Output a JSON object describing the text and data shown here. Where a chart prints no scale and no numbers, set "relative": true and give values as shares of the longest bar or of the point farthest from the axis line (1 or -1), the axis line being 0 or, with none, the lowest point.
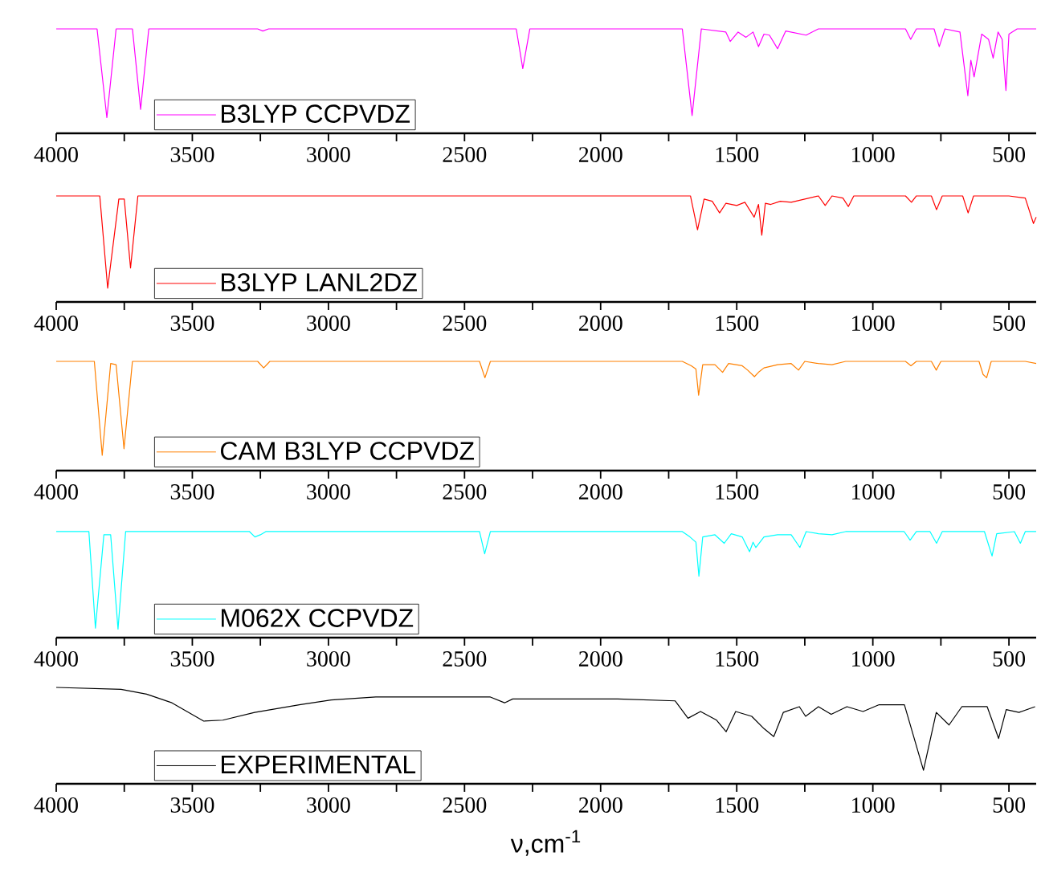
{
  "chart_data": [
    {
      "type": "line",
      "relative": true,
      "xlim": [
        4000,
        400
      ],
      "tick_labels": "x",
      "legend": "bottom left",
      "xticks": [
        4000,
        {
          "value": 3750,
          "label": null
        },
        3500,
        {
          "value": 3250,
          "label": null
        },
        3000,
        {
          "value": 2750,
          "label": null
        },
        2500,
        {
          "value": 2250,
          "label": null
        },
        2000,
        {
          "value": 1750,
          "label": null
        },
        1500,
        {
          "value": 1250,
          "label": null
        },
        1000,
        {
          "value": 750,
          "label": null
        },
        500
      ],
      "series": [
        {
          "name": "B3LYP CCPVDZ",
          "color": "#ff00ff",
          "x": [
            4000,
            3850,
            3814,
            3780,
            3720,
            3690,
            3660,
            3260,
            3241,
            3220,
            2310,
            2286,
            2260,
            1700,
            1664,
            1630,
            1540,
            1524,
            1495,
            1466,
            1440,
            1420,
            1400,
            1380,
            1350,
            1320,
            1245,
            1200,
            880,
            861,
            840,
            775,
            756,
            735,
            680,
            651,
            640,
            628,
            600,
            575,
            558,
            540,
            525,
            511,
            500,
            470,
            400
          ],
          "values": [
            1,
            1,
            0.15,
            1,
            1,
            0.23,
            1,
            1,
            0.98,
            1,
            1,
            0.62,
            1,
            1,
            0.17,
            1,
            0.97,
            0.88,
            0.97,
            0.92,
            0.97,
            0.83,
            0.95,
            0.94,
            0.81,
            0.98,
            0.94,
            1,
            1,
            0.9,
            1,
            1,
            0.83,
            1,
            0.97,
            0.36,
            0.7,
            0.54,
            0.95,
            0.9,
            0.72,
            0.97,
            0.9,
            0.41,
            0.95,
            1,
            1
          ]
        }
      ]
    },
    {
      "type": "line",
      "relative": true,
      "xlim": [
        4000,
        400
      ],
      "tick_labels": "x",
      "legend": "bottom left",
      "xticks": [
        4000,
        {
          "value": 3750,
          "label": null
        },
        3500,
        {
          "value": 3250,
          "label": null
        },
        3000,
        {
          "value": 2750,
          "label": null
        },
        2500,
        {
          "value": 2250,
          "label": null
        },
        2000,
        {
          "value": 1750,
          "label": null
        },
        1500,
        {
          "value": 1250,
          "label": null
        },
        1000,
        {
          "value": 750,
          "label": null
        },
        500
      ],
      "series": [
        {
          "name": "B3LYP LANL2DZ",
          "color": "#ff0000",
          "x": [
            4000,
            3840,
            3811,
            3770,
            3750,
            3727,
            3700,
            1670,
            1644,
            1620,
            1590,
            1563,
            1540,
            1500,
            1470,
            1436,
            1420,
            1408,
            1395,
            1375,
            1340,
            1300,
            1250,
            1200,
            1175,
            1150,
            1110,
            1090,
            1070,
            880,
            858,
            840,
            785,
            766,
            745,
            670,
            650,
            630,
            500,
            440,
            410,
            400
          ],
          "values": [
            1,
            1,
            0.13,
            0.97,
            0.97,
            0.32,
            1,
            1,
            0.68,
            0.97,
            0.95,
            0.84,
            0.93,
            0.91,
            0.94,
            0.8,
            0.92,
            0.63,
            0.93,
            0.92,
            0.95,
            0.94,
            0.97,
            1,
            0.91,
            1,
            0.98,
            0.9,
            1,
            1,
            0.94,
            1,
            1,
            0.87,
            1,
            1,
            0.84,
            1,
            1,
            0.98,
            0.74,
            0.8
          ]
        }
      ]
    },
    {
      "type": "line",
      "relative": true,
      "xlim": [
        4000,
        400
      ],
      "tick_labels": "x",
      "legend": "bottom left",
      "xticks": [
        4000,
        {
          "value": 3750,
          "label": null
        },
        3500,
        {
          "value": 3250,
          "label": null
        },
        3000,
        {
          "value": 2750,
          "label": null
        },
        2500,
        {
          "value": 2250,
          "label": null
        },
        2000,
        {
          "value": 1750,
          "label": null
        },
        1500,
        {
          "value": 1250,
          "label": null
        },
        1000,
        {
          "value": 750,
          "label": null
        },
        500
      ],
      "series": [
        {
          "name": "CAM B3LYP CCPVDZ",
          "color": "#ff8000",
          "x": [
            4000,
            3860,
            3831,
            3800,
            3780,
            3751,
            3720,
            3260,
            3238,
            3215,
            2445,
            2425,
            2405,
            1700,
            1667,
            1650,
            1640,
            1625,
            1580,
            1552,
            1530,
            1480,
            1460,
            1435,
            1420,
            1400,
            1350,
            1300,
            1273,
            1250,
            1200,
            1150,
            1100,
            880,
            860,
            840,
            785,
            767,
            750,
            610,
            595,
            582,
            565,
            440,
            400
          ],
          "values": [
            1,
            1,
            0.14,
            0.98,
            0.97,
            0.2,
            1,
            1,
            0.94,
            1,
            1,
            0.85,
            1,
            1,
            0.96,
            0.93,
            0.69,
            0.97,
            0.97,
            0.9,
            0.98,
            0.96,
            0.92,
            0.86,
            0.9,
            0.94,
            0.97,
            0.98,
            0.92,
            1,
            0.98,
            0.97,
            1,
            1,
            0.96,
            1,
            1,
            0.92,
            1,
            1,
            0.88,
            0.85,
            1,
            1,
            0.98
          ]
        }
      ]
    },
    {
      "type": "line",
      "relative": true,
      "xlim": [
        4000,
        400
      ],
      "tick_labels": "x",
      "legend": "bottom left",
      "xticks": [
        4000,
        {
          "value": 3750,
          "label": null
        },
        3500,
        {
          "value": 3250,
          "label": null
        },
        3000,
        {
          "value": 2750,
          "label": null
        },
        2500,
        {
          "value": 2250,
          "label": null
        },
        2000,
        {
          "value": 1750,
          "label": null
        },
        1500,
        {
          "value": 1250,
          "label": null
        },
        1000,
        {
          "value": 750,
          "label": null
        },
        500
      ],
      "series": [
        {
          "name": "M062X CCPVDZ",
          "color": "#00ffff",
          "x": [
            4000,
            3880,
            3856,
            3825,
            3800,
            3773,
            3745,
            3290,
            3270,
            3250,
            3230,
            2445,
            2426,
            2405,
            1700,
            1672,
            1650,
            1639,
            1625,
            1580,
            1546,
            1520,
            1480,
            1453,
            1440,
            1430,
            1400,
            1350,
            1300,
            1268,
            1245,
            1200,
            1150,
            1100,
            885,
            863,
            840,
            790,
            766,
            745,
            590,
            562,
            545,
            480,
            458,
            440,
            400
          ],
          "values": [
            1,
            1,
            0.09,
            0.97,
            0.97,
            0.08,
            1,
            1,
            0.95,
            0.97,
            1,
            1,
            0.79,
            1,
            1,
            0.95,
            0.9,
            0.58,
            0.95,
            0.97,
            0.89,
            0.98,
            0.95,
            0.81,
            0.9,
            0.85,
            0.95,
            0.97,
            0.97,
            0.85,
            1,
            0.98,
            0.97,
            1,
            1,
            0.92,
            1,
            1,
            0.89,
            1,
            1,
            0.77,
            0.98,
            1,
            0.89,
            1,
            1
          ]
        }
      ]
    },
    {
      "type": "line",
      "relative": true,
      "xlim": [
        4000,
        400
      ],
      "tick_labels": "x",
      "legend": "bottom left",
      "xlabel": "ν,cm$^{-1}$",
      "xticks": [
        4000,
        {
          "value": 3750,
          "label": null
        },
        3500,
        {
          "value": 3250,
          "label": null
        },
        3000,
        {
          "value": 2750,
          "label": null
        },
        2500,
        {
          "value": 2250,
          "label": null
        },
        2000,
        {
          "value": 1750,
          "label": null
        },
        1500,
        {
          "value": 1250,
          "label": null
        },
        1000,
        {
          "value": 750,
          "label": null
        },
        500
      ],
      "series": [
        {
          "name": "EXPERIMENTAL",
          "color": "#000000",
          "x": [
            4000,
            3762,
            3668,
            3575,
            3458,
            3388,
            3271,
            3107,
            2990,
            2826,
            2405,
            2353,
            2323,
            1937,
            1726,
            1679,
            1633,
            1574,
            1539,
            1504,
            1445,
            1399,
            1364,
            1329,
            1270,
            1247,
            1200,
            1153,
            1095,
            1036,
            977,
            884,
            814,
            767,
            720,
            673,
            580,
            538,
            510,
            463,
            404
          ],
          "values": [
            1,
            0.98,
            0.93,
            0.84,
            0.65,
            0.66,
            0.74,
            0.82,
            0.87,
            0.9,
            0.9,
            0.84,
            0.88,
            0.88,
            0.86,
            0.68,
            0.75,
            0.66,
            0.54,
            0.75,
            0.7,
            0.57,
            0.49,
            0.74,
            0.8,
            0.7,
            0.8,
            0.72,
            0.8,
            0.75,
            0.82,
            0.82,
            0.14,
            0.74,
            0.61,
            0.8,
            0.8,
            0.47,
            0.77,
            0.74,
            0.8
          ]
        }
      ]
    }
  ]
}
